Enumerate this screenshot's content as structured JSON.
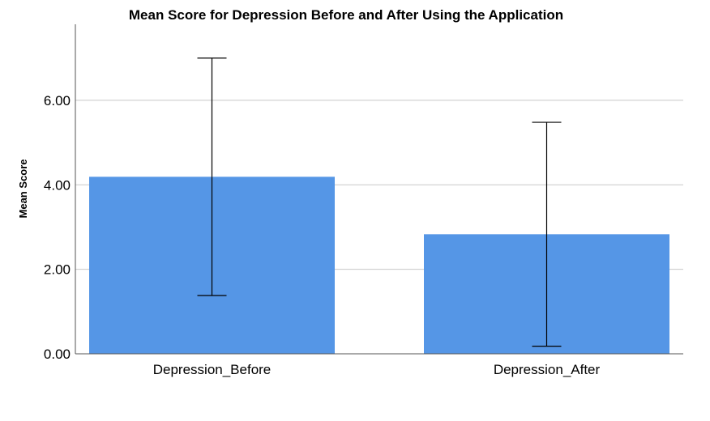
{
  "chart_data": {
    "type": "bar",
    "title": "Mean Score for Depression Before and After Using the Application",
    "xlabel": "",
    "ylabel": "Mean Score",
    "categories": [
      "Depression_Before",
      "Depression_After"
    ],
    "values": [
      4.19,
      2.83
    ],
    "error_low": [
      1.38,
      0.18
    ],
    "error_high": [
      7.0,
      5.48
    ],
    "ylim": [
      0,
      7.8
    ],
    "yticks": [
      0,
      2,
      4,
      6
    ],
    "ytick_labels": [
      "0.00",
      "2.00",
      "4.00",
      "6.00"
    ],
    "grid": true,
    "legend": "none",
    "bar_color": "#5596e6"
  }
}
